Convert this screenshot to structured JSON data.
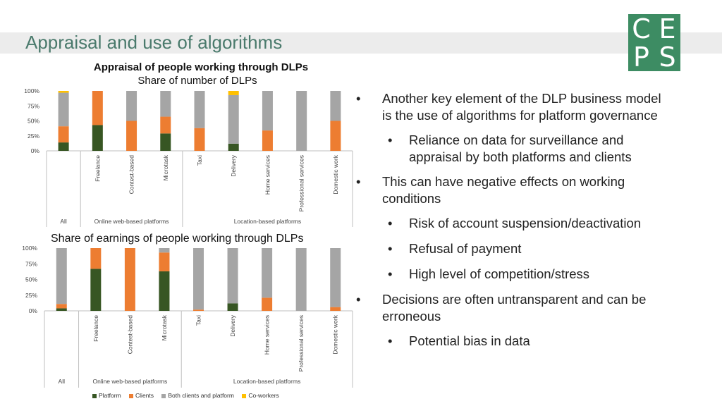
{
  "slide": {
    "title": "Appraisal and use of algorithms",
    "logo_letters": [
      "C",
      "E",
      "P",
      "S"
    ]
  },
  "colors": {
    "Platform": "#375623",
    "Clients": "#ed7d31",
    "Both clients and platform": "#a5a5a5",
    "Co-workers": "#ffc000",
    "title": "#4a7a6c",
    "logo": "#3d8c63"
  },
  "bullets": [
    {
      "level": 1,
      "text_lines": [
        "Another key element of the DLP business model",
        "is the use of algorithms for platform governance"
      ]
    },
    {
      "level": 2,
      "text_lines": [
        "Reliance on data for surveillance and",
        "appraisal by both platforms and clients"
      ]
    },
    {
      "level": 1,
      "text_lines": [
        "This can have negative effects on working",
        "conditions"
      ]
    },
    {
      "level": 2,
      "text_lines": [
        "Risk of account suspension/deactivation"
      ]
    },
    {
      "level": 2,
      "text_lines": [
        "Refusal of payment"
      ]
    },
    {
      "level": 2,
      "text_lines": [
        "High level of competition/stress"
      ]
    },
    {
      "level": 1,
      "text_lines": [
        "Decisions are often untransparent and can be",
        "erroneous"
      ]
    },
    {
      "level": 2,
      "text_lines": [
        "Potential bias in data"
      ]
    }
  ],
  "bullet_char": "•",
  "legend": [
    "Platform",
    "Clients",
    "Both clients and platform",
    "Co-workers"
  ],
  "chart_data": [
    {
      "type": "bar",
      "stacked": true,
      "title": "Appraisal of people working through DLPs",
      "subtitle": "Share of number of DLPs",
      "categories": [
        "",
        "Freelance",
        "Contest-based",
        "Microtask",
        "Taxi",
        "Delivery",
        "Home services",
        "Professional services",
        "Domestic work"
      ],
      "groups": [
        {
          "label": "All",
          "categories": 1
        },
        {
          "label": "Online web-based platforms",
          "categories": 3
        },
        {
          "label": "Location-based platforms",
          "categories": 5
        }
      ],
      "yticks": [
        "0%",
        "25%",
        "50%",
        "75%",
        "100%"
      ],
      "ylim": [
        0,
        100
      ],
      "series": [
        {
          "name": "Platform",
          "values": [
            14,
            43,
            0,
            29,
            0,
            12,
            0,
            0,
            0
          ]
        },
        {
          "name": "Clients",
          "values": [
            27,
            57,
            50,
            28,
            38,
            0,
            34,
            0,
            50
          ]
        },
        {
          "name": "Both clients and platform",
          "values": [
            56,
            0,
            50,
            43,
            62,
            81,
            66,
            100,
            50
          ]
        },
        {
          "name": "Co-workers",
          "values": [
            3,
            0,
            0,
            0,
            0,
            7,
            0,
            0,
            0
          ]
        }
      ]
    },
    {
      "type": "bar",
      "stacked": true,
      "title": "Share of earnings of people working through DLPs",
      "categories": [
        "",
        "Freelance",
        "Contest-based",
        "Microtask",
        "Taxi",
        "Delivery",
        "Home services",
        "Professional services",
        "Domestic work"
      ],
      "groups": [
        {
          "label": "All",
          "categories": 1
        },
        {
          "label": "Online web-based platforms",
          "categories": 3
        },
        {
          "label": "Location-based platforms",
          "categories": 5
        }
      ],
      "yticks": [
        "0%",
        "25%",
        "50%",
        "75%",
        "100%"
      ],
      "ylim": [
        0,
        100
      ],
      "series": [
        {
          "name": "Platform",
          "values": [
            4,
            67,
            0,
            63,
            0,
            12,
            0,
            0,
            0
          ]
        },
        {
          "name": "Clients",
          "values": [
            7,
            33,
            100,
            30,
            2,
            0,
            21,
            0,
            6
          ]
        },
        {
          "name": "Both clients and platform",
          "values": [
            89,
            0,
            0,
            7,
            98,
            88,
            79,
            100,
            94
          ]
        },
        {
          "name": "Co-workers",
          "values": [
            0,
            0,
            0,
            0,
            0,
            0,
            0,
            0,
            0
          ]
        }
      ]
    }
  ]
}
